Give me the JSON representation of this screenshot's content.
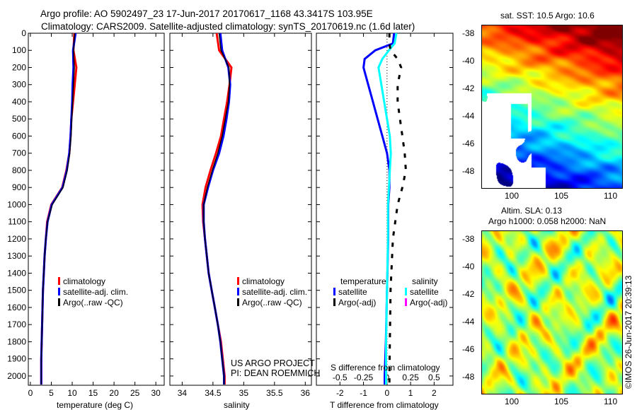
{
  "header": {
    "line1": "Argo profile: AO 5902497_23 17-Jun-2017 20170617_1168 43.3417S 103.95E",
    "line2": "Climatology: CARS2009. Satellite-adjusted climatology: synTS_20170619.nc (1.6d later)"
  },
  "colors": {
    "climatology": "#ff0000",
    "satellite": "#0000ff",
    "argo": "#000000",
    "satellite_s": "#00ffff",
    "argo_s": "#ff00ff"
  },
  "chart_data": [
    {
      "type": "line",
      "name": "temperature",
      "xlabel": "temperature (deg C)",
      "ylabel": "",
      "xlim": [
        -0.5,
        32
      ],
      "ylim": [
        0,
        2054
      ],
      "y_reversed": true,
      "xticks": [
        0,
        5,
        10,
        15,
        20,
        25,
        30
      ],
      "yticks": [
        0,
        100,
        200,
        300,
        400,
        500,
        600,
        700,
        800,
        900,
        1000,
        1100,
        1200,
        1300,
        1400,
        1500,
        1600,
        1700,
        1800,
        1900,
        2000
      ],
      "depth": [
        0,
        100,
        200,
        300,
        400,
        500,
        600,
        700,
        800,
        900,
        1000,
        1100,
        1200,
        1300,
        1400,
        1500,
        1600,
        1700,
        1800,
        1900,
        2000,
        2050
      ],
      "series": [
        {
          "name": "climatology",
          "values": [
            10.5,
            10.3,
            11.0,
            10.6,
            10.2,
            9.8,
            9.6,
            9.3,
            8.6,
            7.6,
            5.0,
            4.0,
            3.7,
            3.4,
            3.2,
            3.0,
            2.9,
            2.8,
            2.7,
            2.6,
            2.6,
            2.6
          ]
        },
        {
          "name": "satellite-adj. clim.",
          "values": [
            10.8,
            10.2,
            10.3,
            10.1,
            10.0,
            9.8,
            9.6,
            9.3,
            8.7,
            7.7,
            5.1,
            4.1,
            3.7,
            3.4,
            3.2,
            3.0,
            2.9,
            2.8,
            2.7,
            2.6,
            2.6,
            2.6
          ]
        },
        {
          "name": "Argo(..raw -QC)",
          "values": [
            10.6,
            10.3,
            10.5,
            10.3,
            10.1,
            9.9,
            9.7,
            9.4,
            8.8,
            7.8,
            5.2,
            4.1,
            3.7,
            3.4,
            3.2,
            3.0,
            2.9,
            2.8,
            2.7,
            2.6,
            2.6,
            2.6
          ]
        }
      ],
      "legend": [
        "climatology",
        "satellite-adj. clim.",
        "Argo(..raw -QC)"
      ]
    },
    {
      "type": "line",
      "name": "salinity",
      "xlabel": "salinity",
      "xlim": [
        33.8,
        36.1
      ],
      "ylim": [
        0,
        2054
      ],
      "y_reversed": true,
      "xticks": [
        34,
        34.5,
        35,
        35.5,
        36
      ],
      "depth": [
        0,
        100,
        200,
        300,
        400,
        500,
        600,
        700,
        800,
        900,
        1000,
        1100,
        1200,
        1300,
        1400,
        1500,
        1600,
        1700,
        1800,
        1900,
        2000,
        2050
      ],
      "series": [
        {
          "name": "climatology",
          "values": [
            34.56,
            34.6,
            34.8,
            34.77,
            34.73,
            34.68,
            34.63,
            34.55,
            34.46,
            34.38,
            34.33,
            34.34,
            34.37,
            34.4,
            34.43,
            34.48,
            34.53,
            34.58,
            34.63,
            34.66,
            34.69,
            34.69
          ]
        },
        {
          "name": "satellite-adj. clim.",
          "values": [
            34.62,
            34.65,
            34.75,
            34.78,
            34.76,
            34.72,
            34.67,
            34.6,
            34.5,
            34.42,
            34.35,
            34.35,
            34.37,
            34.4,
            34.43,
            34.48,
            34.53,
            34.58,
            34.62,
            34.65,
            34.68,
            34.68
          ]
        },
        {
          "name": "Argo(..raw -QC)",
          "values": [
            34.6,
            34.63,
            34.76,
            34.77,
            34.75,
            34.7,
            34.65,
            34.58,
            34.49,
            34.41,
            34.35,
            34.35,
            34.37,
            34.4,
            34.43,
            34.48,
            34.53,
            34.58,
            34.62,
            34.65,
            34.68,
            34.68
          ]
        }
      ],
      "legend": [
        "climatology",
        "satellite-adj. clim.",
        "Argo(..raw -QC)"
      ],
      "annotation": [
        "US ARGO PROJECT",
        "PI: DEAN ROEMMICH"
      ]
    },
    {
      "type": "line",
      "name": "difference",
      "xlabel": "T difference from climatology",
      "x2label": "S difference from climatology",
      "xlim": [
        -3,
        2.8
      ],
      "ylim": [
        0,
        2054
      ],
      "y_reversed": true,
      "xticks": [
        -2,
        -1,
        0,
        1,
        2
      ],
      "x2ticks": [
        -0.5,
        -0.25,
        0,
        0.25,
        0.5
      ],
      "x2ticklabels": [
        "-0.5",
        "-0.25",
        "0",
        "0.25",
        "0.5"
      ],
      "depth": [
        0,
        60,
        100,
        150,
        200,
        300,
        400,
        500,
        600,
        700,
        800,
        900,
        1000,
        1200,
        1500,
        1800,
        2000,
        2050
      ],
      "series": [
        {
          "name": "temperature satellite",
          "axis": "T",
          "values": [
            0.3,
            0.25,
            -0.5,
            -0.95,
            -1.0,
            -0.8,
            -0.6,
            -0.4,
            -0.2,
            0.0,
            0.1,
            0.1,
            0.05,
            0.05,
            0.0,
            -0.05,
            -0.1,
            -0.1
          ]
        },
        {
          "name": "salinity satellite",
          "axis": "S",
          "values": [
            0.1,
            0.08,
            0.02,
            -0.05,
            -0.09,
            -0.06,
            -0.03,
            0.0,
            0.03,
            0.04,
            0.03,
            0.02,
            0.01,
            0.01,
            0.0,
            -0.01,
            -0.01,
            -0.01
          ]
        },
        {
          "name": "temperature Argo(-adj)",
          "axis": "T",
          "values": [
            0.1,
            0.1,
            0.15,
            0.45,
            0.6,
            0.45,
            0.45,
            0.55,
            0.65,
            0.75,
            0.8,
            0.65,
            0.45,
            0.25,
            0.15,
            0.12,
            0.1,
            0.1
          ]
        }
      ],
      "legend": {
        "temperature_title": "temperature",
        "salinity_title": "salinity",
        "t_sat": "satellite",
        "t_argo": "Argo(-adj)",
        "s_sat": "satellite",
        "s_argo": "Argo(-adj)"
      }
    }
  ],
  "maps": {
    "sst": {
      "title": "sat. SST: 10.5 Argo: 10.6",
      "lat_ticks": [
        "-38",
        "-40",
        "-42",
        "-44",
        "-46",
        "-48"
      ],
      "lon_ticks": [
        "100",
        "105",
        "110"
      ]
    },
    "sla": {
      "title1": "Altim. SLA: 0.13",
      "title2": "Argo h1000: 0.058 h2000: NaN",
      "lat_ticks": [
        "-38",
        "-40",
        "-42",
        "-44",
        "-46",
        "-48"
      ],
      "lon_ticks": [
        "100",
        "105",
        "110"
      ]
    },
    "credit": "©IMOS 26-Jun-2017 20:39:13"
  }
}
